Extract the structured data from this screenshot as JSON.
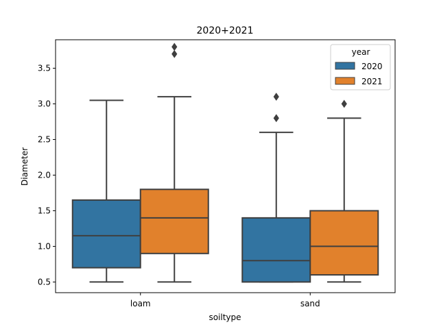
{
  "chart_data": {
    "type": "box",
    "title": "2020+2021",
    "xlabel": "soiltype",
    "ylabel": "Diameter",
    "categories": [
      "loam",
      "sand"
    ],
    "ylim": [
      0.35,
      3.9
    ],
    "yticks": [
      0.5,
      1.0,
      1.5,
      2.0,
      2.5,
      3.0,
      3.5
    ],
    "ytick_labels": [
      "0.5",
      "1.0",
      "1.5",
      "2.0",
      "2.5",
      "3.0",
      "3.5"
    ],
    "legend": {
      "title": "year",
      "position": "top-right",
      "entries": [
        "2020",
        "2021"
      ]
    },
    "grid": false,
    "series": [
      {
        "name": "2020",
        "color": "#3274a1",
        "boxes": [
          {
            "category": "loam",
            "whisker_low": 0.5,
            "q1": 0.7,
            "median": 1.15,
            "q3": 1.65,
            "whisker_high": 3.05,
            "outliers": []
          },
          {
            "category": "sand",
            "whisker_low": 0.5,
            "q1": 0.5,
            "median": 0.8,
            "q3": 1.4,
            "whisker_high": 2.6,
            "outliers": [
              2.8,
              3.1
            ]
          }
        ]
      },
      {
        "name": "2021",
        "color": "#e1812c",
        "boxes": [
          {
            "category": "loam",
            "whisker_low": 0.5,
            "q1": 0.9,
            "median": 1.4,
            "q3": 1.8,
            "whisker_high": 3.1,
            "outliers": [
              3.7,
              3.8
            ]
          },
          {
            "category": "sand",
            "whisker_low": 0.5,
            "q1": 0.6,
            "median": 1.0,
            "q3": 1.5,
            "whisker_high": 2.8,
            "outliers": [
              3.0
            ]
          }
        ]
      }
    ]
  }
}
